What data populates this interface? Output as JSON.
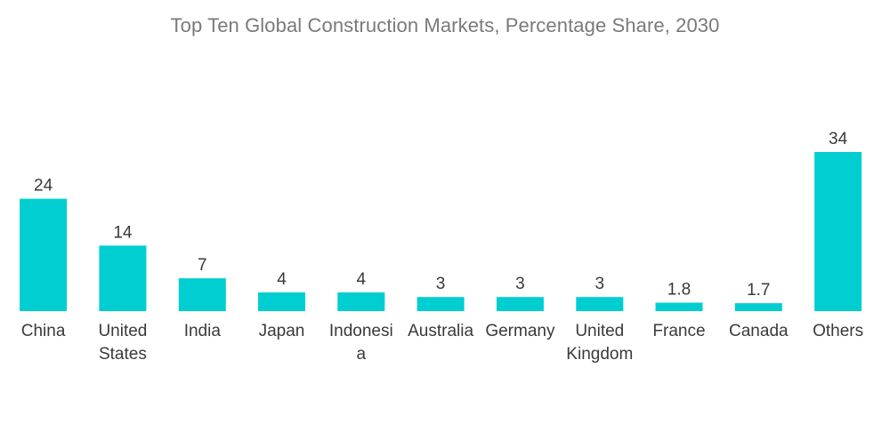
{
  "chart_data": {
    "type": "bar",
    "title": "Top Ten Global Construction Markets, Percentage Share, 2030",
    "xlabel": "",
    "ylabel": "",
    "categories": [
      "China",
      "United States",
      "India",
      "Japan",
      "Indonesia",
      "Australia",
      "Germany",
      "United Kingdom",
      "France",
      "Canada",
      "Others"
    ],
    "category_lines": [
      [
        "China"
      ],
      [
        "United",
        "States"
      ],
      [
        "India"
      ],
      [
        "Japan"
      ],
      [
        "Indonesi",
        "a"
      ],
      [
        "Australia"
      ],
      [
        "Germany"
      ],
      [
        "United",
        "Kingdom"
      ],
      [
        "France"
      ],
      [
        "Canada"
      ],
      [
        "Others"
      ]
    ],
    "values": [
      24,
      14,
      7,
      4,
      4,
      3,
      3,
      3,
      1.8,
      1.7,
      34
    ],
    "value_labels": [
      "24",
      "14",
      "7",
      "4",
      "4",
      "3",
      "3",
      "3",
      "1.8",
      "1.7",
      "34"
    ],
    "ylim": [
      0,
      34
    ],
    "grid": false,
    "legend": "none",
    "colors": {
      "bar": "#00CED1",
      "title": "#7a7a7a",
      "text": "#3a3a3a"
    }
  }
}
